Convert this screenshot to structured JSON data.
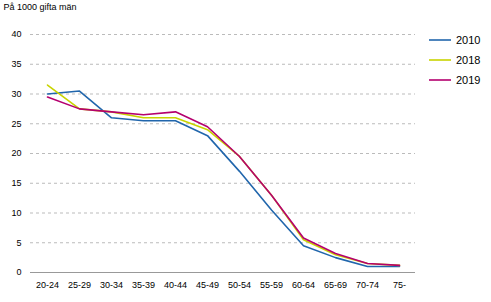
{
  "chart_data": {
    "type": "line",
    "ylabel": "På 1000 gifta män",
    "categories": [
      "20-24",
      "25-29",
      "30-34",
      "35-39",
      "40-44",
      "45-49",
      "50-54",
      "55-59",
      "60-64",
      "65-69",
      "70-74",
      "75-"
    ],
    "series": [
      {
        "name": "2010",
        "color": "#2166ac",
        "values": [
          30.0,
          30.5,
          26.0,
          25.5,
          25.5,
          23.0,
          17.0,
          10.5,
          4.5,
          2.5,
          1.0,
          1.0
        ]
      },
      {
        "name": "2018",
        "color": "#c8d400",
        "values": [
          31.5,
          27.5,
          27.0,
          26.0,
          26.0,
          24.0,
          19.5,
          13.0,
          5.5,
          3.0,
          1.5,
          1.2
        ]
      },
      {
        "name": "2019",
        "color": "#b5006e",
        "values": [
          29.5,
          27.5,
          27.0,
          26.5,
          27.0,
          24.5,
          19.5,
          13.0,
          5.8,
          3.2,
          1.5,
          1.2
        ]
      }
    ],
    "ylim": [
      0,
      40
    ],
    "yticks": [
      0,
      5,
      10,
      15,
      20,
      25,
      30,
      35,
      40
    ],
    "grid": true,
    "legend": "right"
  }
}
